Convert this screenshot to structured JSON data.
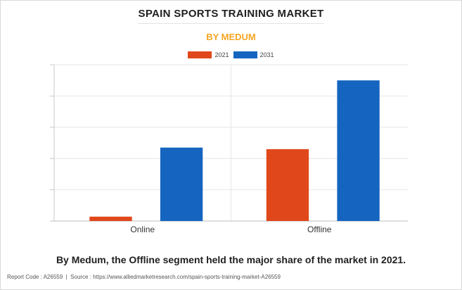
{
  "header": {
    "title": "SPAIN SPORTS TRAINING MARKET",
    "subtitle": "BY MEDUM"
  },
  "caption": "By Medum, the Offline segment held the major share of the market in 2021.",
  "footer": {
    "report_code": "Report Code : A26559",
    "separator": "|",
    "source": "Source : https://www.alliedmarketresearch.com/spain-sports-training-market-A26559"
  },
  "colors": {
    "series_2021": "#e0481b",
    "series_2031": "#1565c0",
    "subtitle": "#f5a623",
    "grid": "#e6e6e6"
  },
  "chart_data": {
    "type": "bar",
    "categories": [
      "Online",
      "Offline"
    ],
    "series": [
      {
        "name": "2021",
        "values": [
          0.28,
          4.6
        ]
      },
      {
        "name": "2031",
        "values": [
          4.7,
          9.0
        ]
      }
    ],
    "title": "SPAIN SPORTS TRAINING MARKET",
    "subtitle": "BY MEDUM",
    "xlabel": "",
    "ylabel": "",
    "ylim": [
      0,
      10
    ],
    "y_tick_labels_visible": false,
    "grid": true,
    "legend": "top-center"
  }
}
